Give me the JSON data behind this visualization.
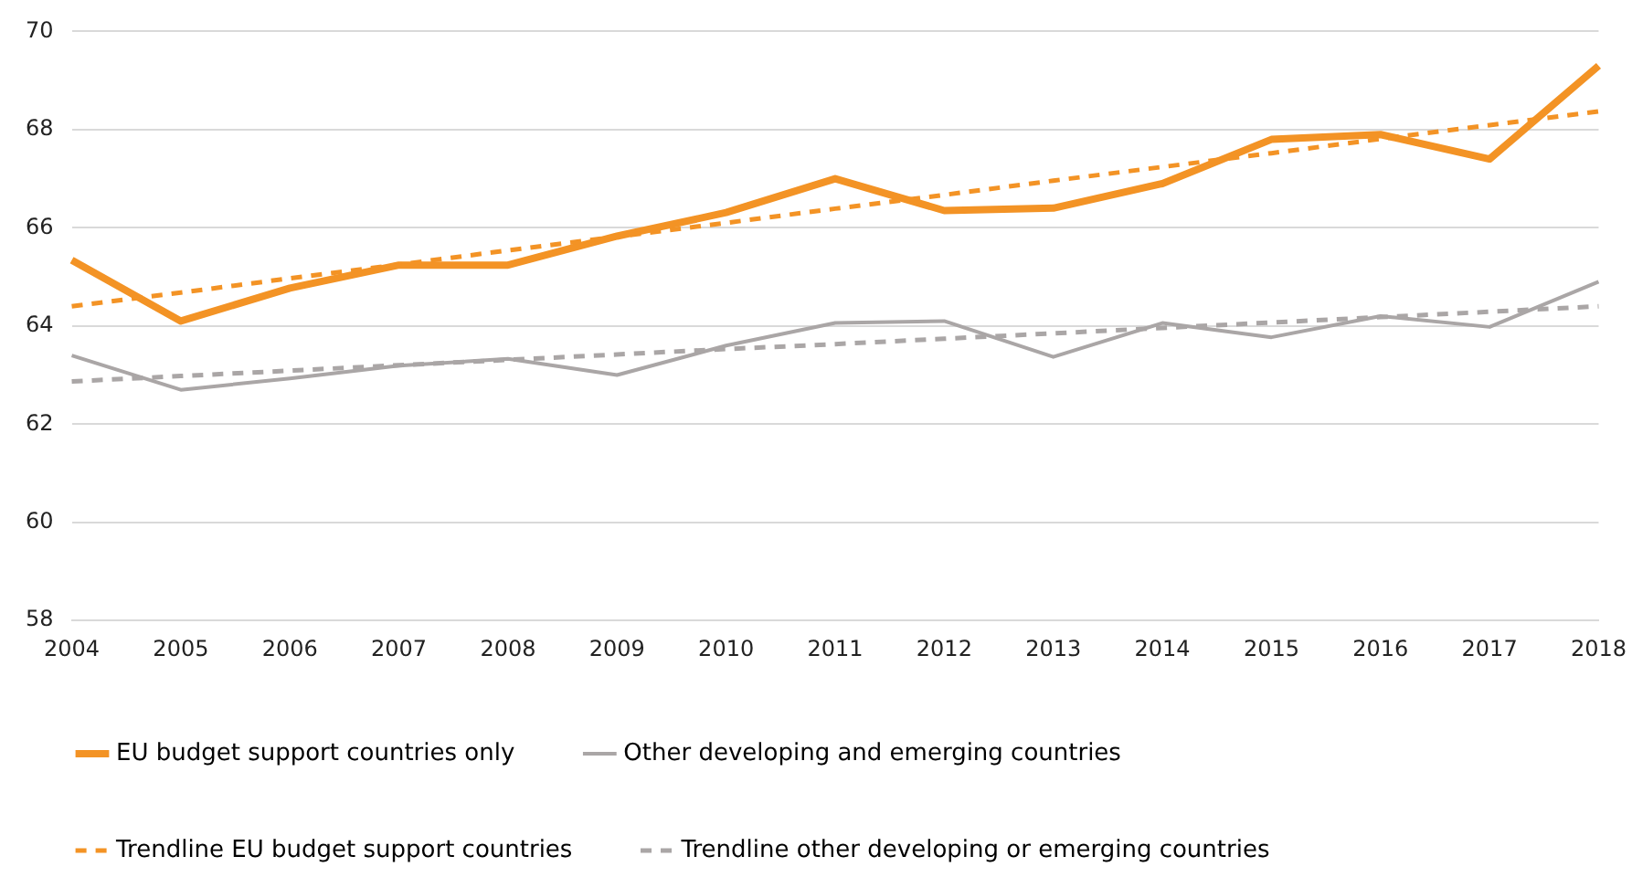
{
  "chart_data": {
    "type": "line",
    "categories": [
      "2004",
      "2005",
      "2006",
      "2007",
      "2008",
      "2009",
      "2010",
      "2011",
      "2012",
      "2013",
      "2014",
      "2015",
      "2016",
      "2017",
      "2018"
    ],
    "series": [
      {
        "name": "EU budget support countries only",
        "color": "#f39325",
        "line_style": "solid",
        "values": [
          65.34,
          64.1,
          64.77,
          65.24,
          65.24,
          65.83,
          66.31,
          67.0,
          66.35,
          66.4,
          66.9,
          67.8,
          67.9,
          67.4,
          69.3
        ]
      },
      {
        "name": "Other developing and emerging countries",
        "color": "#aaa6a6",
        "line_style": "solid",
        "values": [
          63.4,
          62.7,
          62.93,
          63.19,
          63.33,
          63.0,
          63.6,
          64.06,
          64.1,
          63.37,
          64.06,
          63.77,
          64.2,
          63.98,
          64.9
        ]
      },
      {
        "name": "Trendline EU budget support countries",
        "color": "#f39325",
        "line_style": "dashed",
        "values": [
          64.4,
          64.68,
          64.97,
          65.25,
          65.54,
          65.82,
          66.1,
          66.39,
          66.67,
          66.96,
          67.24,
          67.52,
          67.81,
          68.09,
          68.37
        ]
      },
      {
        "name": "Trendline other developing or emerging countries",
        "color": "#aaa6a6",
        "line_style": "dashed",
        "values": [
          62.87,
          62.98,
          63.09,
          63.2,
          63.31,
          63.42,
          63.53,
          63.63,
          63.74,
          63.85,
          63.96,
          64.07,
          64.18,
          64.29,
          64.4
        ]
      }
    ],
    "ylim": [
      58,
      70
    ],
    "yticks": [
      58,
      60,
      62,
      64,
      66,
      68,
      70
    ],
    "grid": "y",
    "legend": "bottom",
    "marker": "none"
  }
}
